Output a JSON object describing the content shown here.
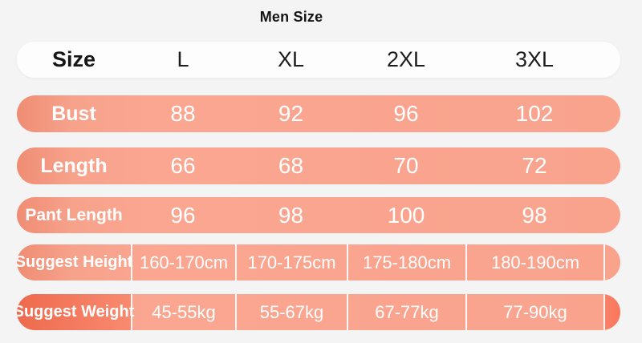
{
  "page": {
    "title": "Men Size"
  },
  "table": {
    "header": {
      "label": "Size",
      "columns": [
        "L",
        "XL",
        "2XL",
        "3XL"
      ]
    },
    "rows": [
      {
        "label": "Bust",
        "values": [
          "88",
          "92",
          "96",
          "102"
        ],
        "style": "plain"
      },
      {
        "label": "Length",
        "values": [
          "66",
          "68",
          "70",
          "72"
        ],
        "style": "plain"
      },
      {
        "label": "Pant Length",
        "values": [
          "96",
          "98",
          "100",
          "98"
        ],
        "style": "plain"
      },
      {
        "label": "Suggest Height",
        "values": [
          "160-170cm",
          "170-175cm",
          "175-180cm",
          "180-190cm"
        ],
        "style": "divided"
      },
      {
        "label": "Suggest Weight",
        "values": [
          "45-55kg",
          "55-67kg",
          "67-77kg",
          "77-90kg"
        ],
        "style": "divided accent"
      }
    ]
  },
  "colors": {
    "page_background": "#f4f4f5",
    "header_background": "#fdfdfd",
    "row_salmon": "#f9a48e",
    "row_salmon_edge": "#ef8d74",
    "accent_coral": "#f87c60",
    "divider_white": "#ffffff",
    "text_dark": "#1a1a1a",
    "text_white": "#ffffff"
  },
  "chart_data": {
    "type": "table",
    "title": "Men Size",
    "columns": [
      "Size",
      "L",
      "XL",
      "2XL",
      "3XL"
    ],
    "rows": [
      [
        "Bust",
        "88",
        "92",
        "96",
        "102"
      ],
      [
        "Length",
        "66",
        "68",
        "70",
        "72"
      ],
      [
        "Pant Length",
        "96",
        "98",
        "100",
        "98"
      ],
      [
        "Suggest Height",
        "160-170cm",
        "170-175cm",
        "175-180cm",
        "180-190cm"
      ],
      [
        "Suggest Weight",
        "45-55kg",
        "55-67kg",
        "67-77kg",
        "77-90kg"
      ]
    ]
  }
}
